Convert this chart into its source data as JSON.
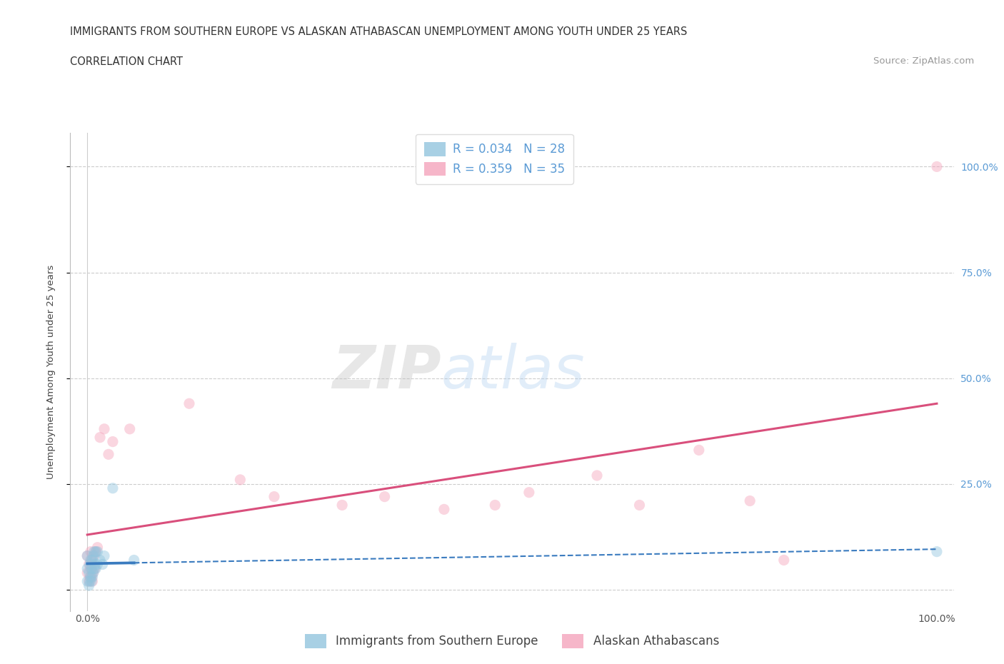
{
  "title": "IMMIGRANTS FROM SOUTHERN EUROPE VS ALASKAN ATHABASCAN UNEMPLOYMENT AMONG YOUTH UNDER 25 YEARS",
  "subtitle": "CORRELATION CHART",
  "source": "Source: ZipAtlas.com",
  "ylabel": "Unemployment Among Youth under 25 years",
  "xlim": [
    -0.02,
    1.02
  ],
  "ylim": [
    -0.05,
    1.08
  ],
  "xtick_positions": [
    0.0,
    0.25,
    0.5,
    0.75,
    1.0
  ],
  "xticklabels": [
    "0.0%",
    "",
    "",
    "",
    "100.0%"
  ],
  "ytick_positions": [
    0.0,
    0.25,
    0.5,
    0.75,
    1.0
  ],
  "ytick_labels_right": [
    "",
    "25.0%",
    "50.0%",
    "75.0%",
    "100.0%"
  ],
  "watermark_text": "ZIPatlas",
  "background_color": "#ffffff",
  "grid_color": "#cccccc",
  "blue_color": "#92c5de",
  "pink_color": "#f4a4bc",
  "blue_line_color": "#3a7bbf",
  "pink_line_color": "#d94f7c",
  "blue_R": 0.034,
  "blue_N": 28,
  "pink_R": 0.359,
  "pink_N": 35,
  "legend_label_blue": "Immigrants from Southern Europe",
  "legend_label_pink": "Alaskan Athabascans",
  "blue_scatter_x": [
    0.0,
    0.0,
    0.0,
    0.002,
    0.002,
    0.003,
    0.003,
    0.004,
    0.004,
    0.005,
    0.005,
    0.006,
    0.006,
    0.007,
    0.007,
    0.008,
    0.008,
    0.009,
    0.01,
    0.01,
    0.012,
    0.012,
    0.015,
    0.018,
    0.02,
    0.03,
    0.055,
    1.0
  ],
  "blue_scatter_y": [
    0.02,
    0.05,
    0.08,
    0.01,
    0.04,
    0.02,
    0.06,
    0.03,
    0.07,
    0.02,
    0.05,
    0.03,
    0.07,
    0.04,
    0.08,
    0.05,
    0.09,
    0.06,
    0.05,
    0.09,
    0.06,
    0.09,
    0.07,
    0.06,
    0.08,
    0.24,
    0.07,
    0.09
  ],
  "pink_scatter_x": [
    0.0,
    0.0,
    0.002,
    0.002,
    0.003,
    0.004,
    0.004,
    0.005,
    0.005,
    0.006,
    0.006,
    0.007,
    0.008,
    0.009,
    0.01,
    0.012,
    0.015,
    0.02,
    0.025,
    0.03,
    0.05,
    0.12,
    0.18,
    0.22,
    0.3,
    0.35,
    0.42,
    0.48,
    0.52,
    0.6,
    0.65,
    0.72,
    0.78,
    0.82,
    1.0
  ],
  "pink_scatter_y": [
    0.04,
    0.08,
    0.02,
    0.06,
    0.03,
    0.05,
    0.09,
    0.03,
    0.07,
    0.02,
    0.06,
    0.04,
    0.08,
    0.05,
    0.09,
    0.1,
    0.36,
    0.38,
    0.32,
    0.35,
    0.38,
    0.44,
    0.26,
    0.22,
    0.2,
    0.22,
    0.19,
    0.2,
    0.23,
    0.27,
    0.2,
    0.33,
    0.21,
    0.07,
    1.0
  ],
  "title_fontsize": 10.5,
  "subtitle_fontsize": 10.5,
  "source_fontsize": 9.5,
  "axis_label_fontsize": 9.5,
  "tick_fontsize": 10,
  "legend_fontsize": 12,
  "watermark_fontsize": 60,
  "watermark_alpha": 0.12,
  "scatter_size": 120,
  "scatter_alpha": 0.45,
  "line_width": 2.2,
  "pink_line_start_y": 0.13,
  "pink_line_end_y": 0.44,
  "blue_line_start_y": 0.055,
  "blue_line_end_y": 0.095
}
